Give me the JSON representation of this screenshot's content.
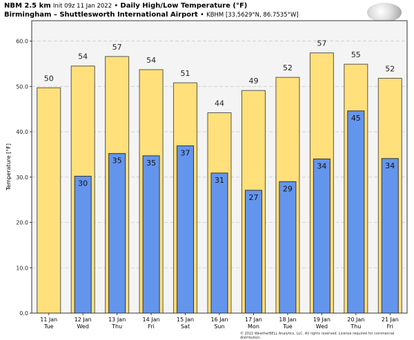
{
  "header": {
    "model": "NBM 2.5 km",
    "init": "Init 09z 11 Jan 2022",
    "sep": "•",
    "product": "Daily High/Low Temperature (°F)",
    "location": "Birmingham – Shuttlesworth International Airport",
    "station": "KBHM [33.5629°N, 86.7535°W]"
  },
  "logo": "WeatherBELL",
  "footer": "© 2022 WeatherBELL Analytics, LLC. All rights reserved. License required for commercial distribution.",
  "colors": {
    "high": "#FFE07A",
    "low": "#6495ED",
    "plot_bg": "#F4F4F4"
  },
  "chart_data": {
    "type": "bar",
    "title": "Daily High/Low Temperature (°F)",
    "xlabel": "",
    "ylabel": "Temperature [°F]",
    "ylim": [
      0,
      64.5
    ],
    "yticks": [
      "0.0",
      "10.0",
      "20.0",
      "30.0",
      "40.0",
      "50.0",
      "60.0"
    ],
    "grid": true,
    "categories": [
      {
        "date": "11 Jan",
        "day": "Tue"
      },
      {
        "date": "12 Jan",
        "day": "Wed"
      },
      {
        "date": "13 Jan",
        "day": "Thu"
      },
      {
        "date": "14 Jan",
        "day": "Fri"
      },
      {
        "date": "15 Jan",
        "day": "Sat"
      },
      {
        "date": "16 Jan",
        "day": "Sun"
      },
      {
        "date": "17 Jan",
        "day": "Mon"
      },
      {
        "date": "18 Jan",
        "day": "Tue"
      },
      {
        "date": "19 Jan",
        "day": "Wed"
      },
      {
        "date": "20 Jan",
        "day": "Thu"
      },
      {
        "date": "21 Jan",
        "day": "Fri"
      }
    ],
    "series": [
      {
        "name": "High",
        "values": [
          49.7,
          54.5,
          56.6,
          53.7,
          50.8,
          44.2,
          49.1,
          52.0,
          57.4,
          54.9,
          51.8
        ],
        "labels": [
          "50",
          "54",
          "57",
          "54",
          "51",
          "44",
          "49",
          "52",
          "57",
          "55",
          "52"
        ]
      },
      {
        "name": "Low",
        "values": [
          null,
          30.2,
          35.2,
          34.7,
          36.9,
          30.9,
          27.1,
          29.0,
          34.0,
          44.6,
          34.1
        ],
        "labels": [
          null,
          "30",
          "35",
          "35",
          "37",
          "31",
          "27",
          "29",
          "34",
          "45",
          "34"
        ]
      }
    ]
  }
}
